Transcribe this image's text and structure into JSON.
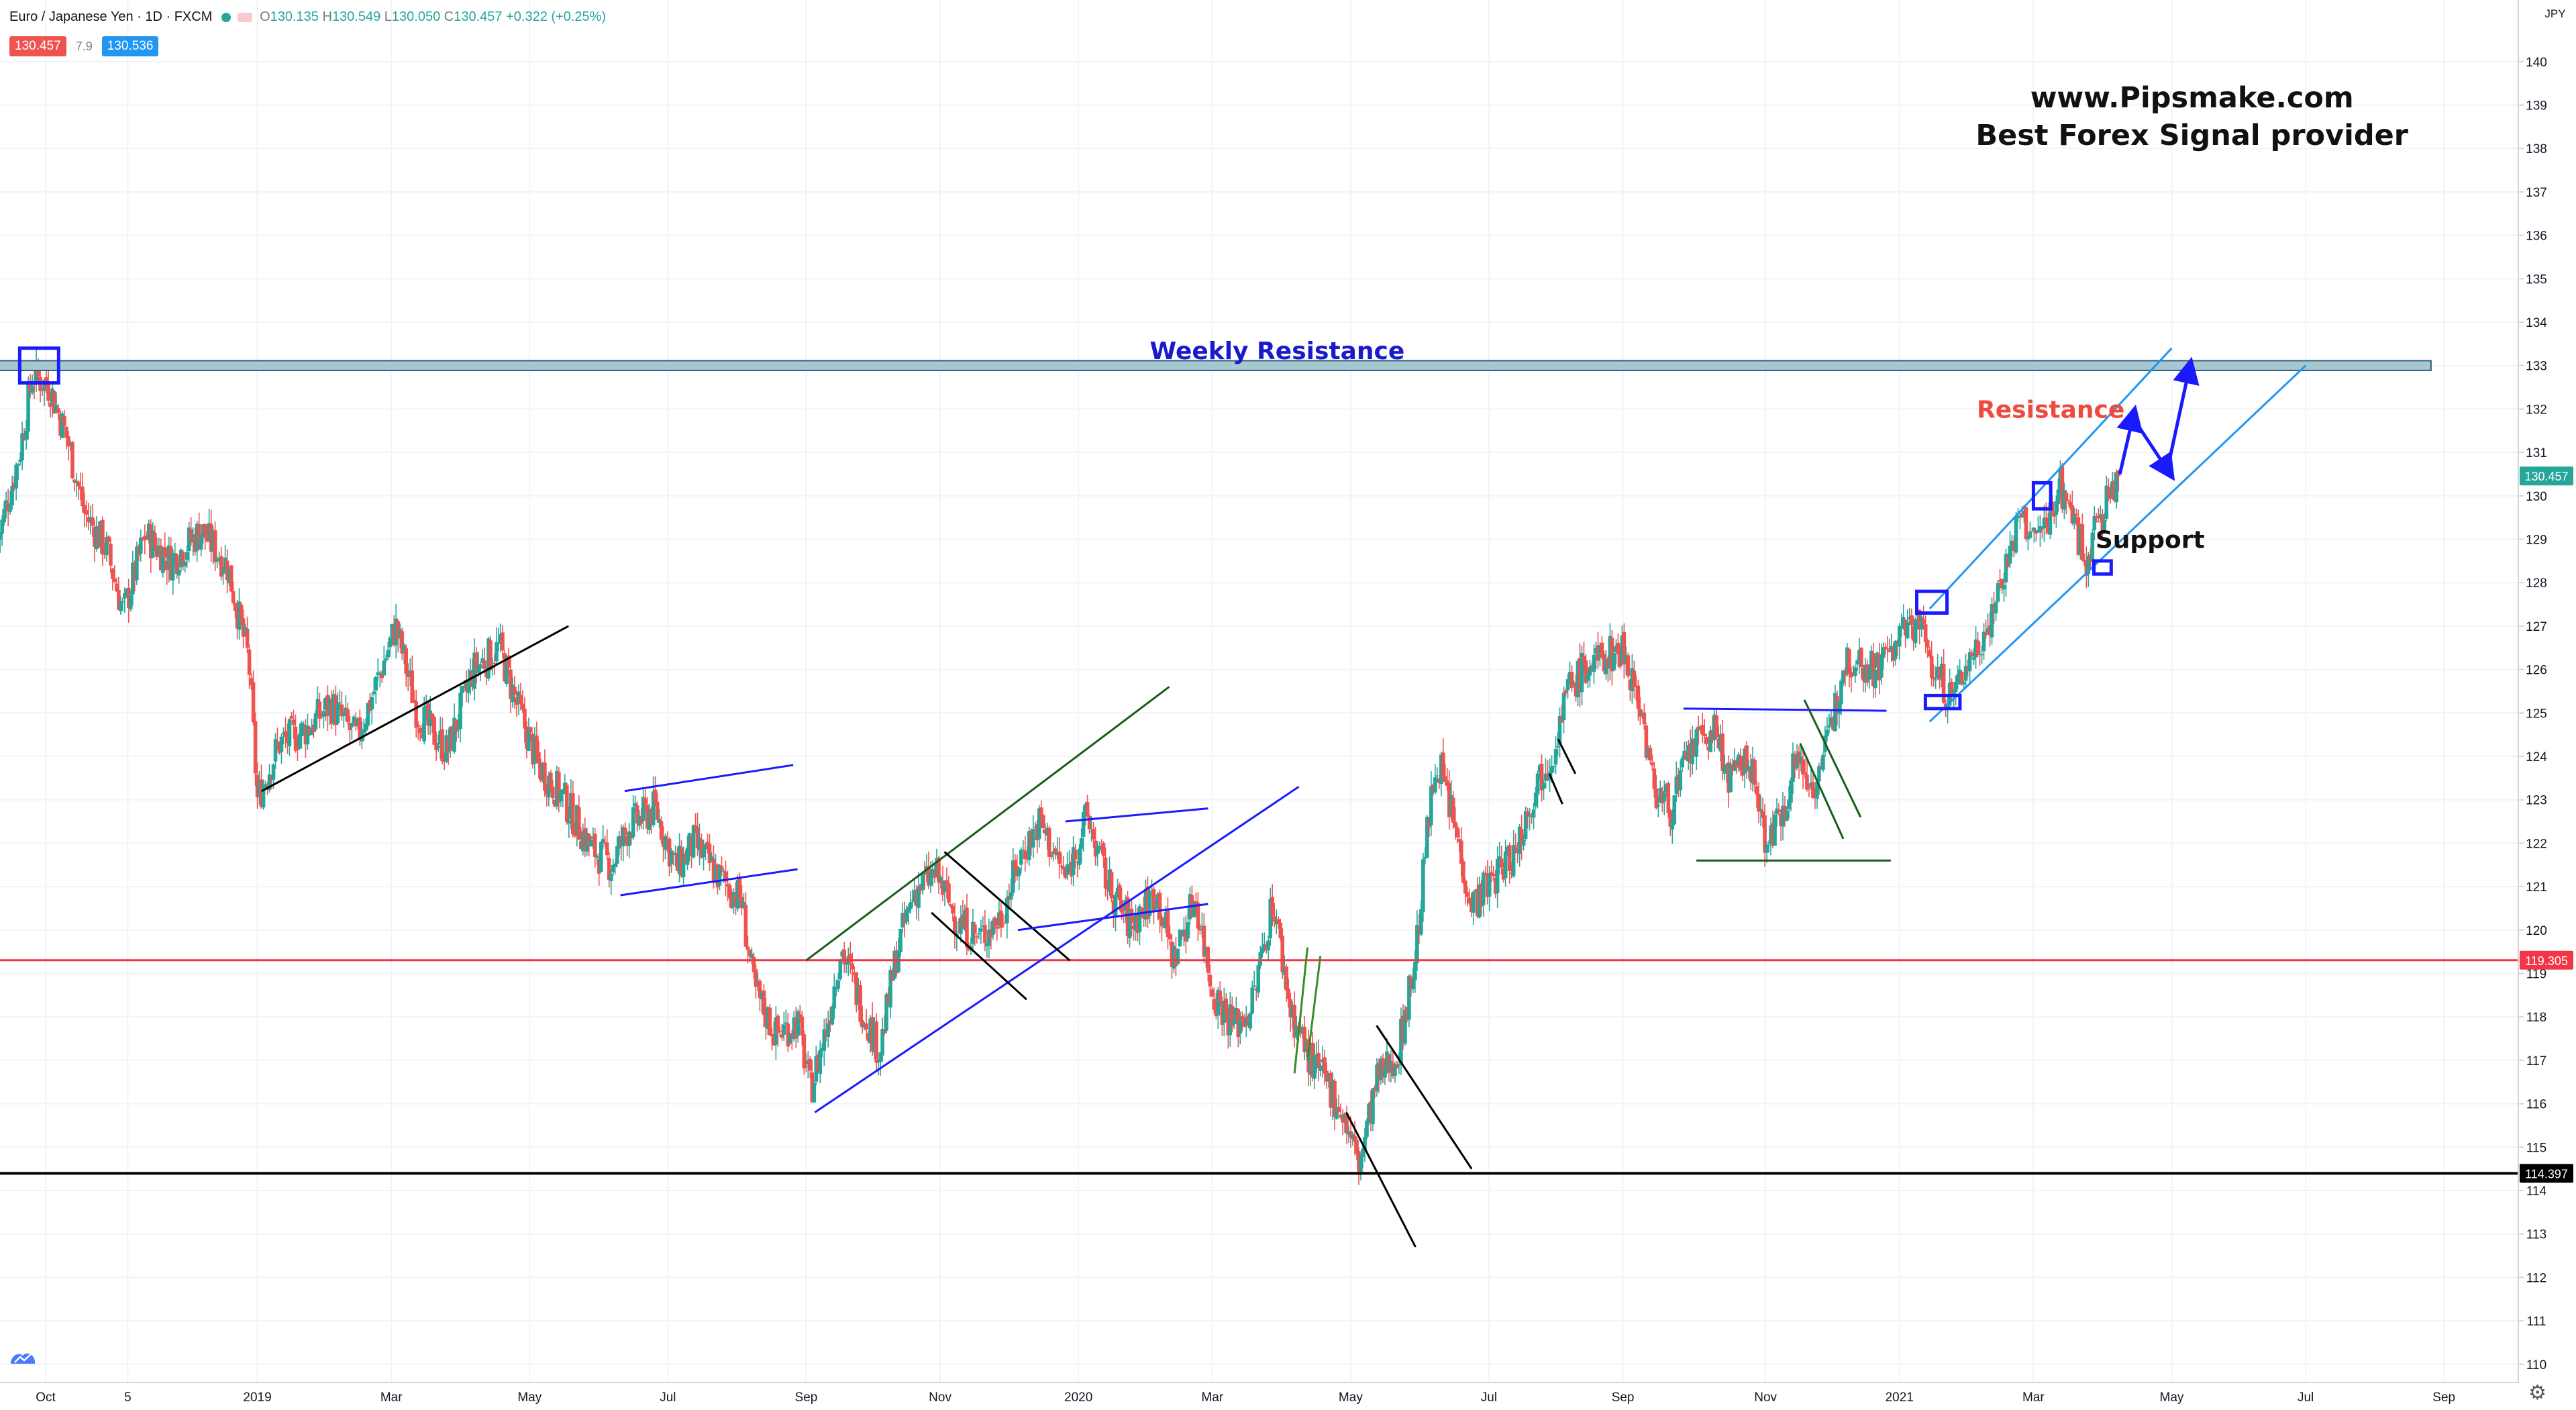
{
  "header": {
    "symbol": "Euro / Japanese Yen · 1D · FXCM",
    "open_label": "O",
    "open": "130.135",
    "high_label": "H",
    "high": "130.549",
    "low_label": "L",
    "low": "130.050",
    "close_label": "C",
    "close": "130.457",
    "change": "+0.322 (+0.25%)",
    "bid": "130.457",
    "spread": "7.9",
    "ask": "130.536"
  },
  "watermark": {
    "line1": "www.Pipsmake.com",
    "line2": "Best Forex Signal provider"
  },
  "chart_data": {
    "type": "candlestick",
    "currency": "JPY",
    "ylim": [
      109.4,
      140.4
    ],
    "y_ticks": [
      110,
      111,
      112,
      113,
      114,
      115,
      116,
      117,
      118,
      119,
      120,
      121,
      122,
      123,
      124,
      125,
      126,
      127,
      128,
      129,
      130,
      131,
      132,
      133,
      134,
      135,
      136,
      137,
      138,
      139,
      140
    ],
    "x_ticks": [
      {
        "label": "Oct",
        "x": 0.0
      },
      {
        "label": "5",
        "x": 1.9
      },
      {
        "label": "2019",
        "x": 4.9
      },
      {
        "label": "Mar",
        "x": 8.0
      },
      {
        "label": "May",
        "x": 11.2
      },
      {
        "label": "Jul",
        "x": 14.4
      },
      {
        "label": "Sep",
        "x": 17.6
      },
      {
        "label": "Nov",
        "x": 20.7
      },
      {
        "label": "2020",
        "x": 23.9
      },
      {
        "label": "Mar",
        "x": 27.0
      },
      {
        "label": "May",
        "x": 30.2
      },
      {
        "label": "Jul",
        "x": 33.4
      },
      {
        "label": "Sep",
        "x": 36.5
      },
      {
        "label": "Nov",
        "x": 39.8
      },
      {
        "label": "2021",
        "x": 42.9
      },
      {
        "label": "Mar",
        "x": 46.0
      },
      {
        "label": "May",
        "x": 49.2
      },
      {
        "label": "Jul",
        "x": 52.3
      },
      {
        "label": "Sep",
        "x": 55.5
      }
    ],
    "price_path": [
      [
        -1.1,
        129.0
      ],
      [
        -0.6,
        131.0
      ],
      [
        -0.3,
        132.8
      ],
      [
        0.1,
        132.5
      ],
      [
        0.5,
        131.3
      ],
      [
        0.9,
        129.6
      ],
      [
        1.4,
        128.8
      ],
      [
        1.8,
        127.3
      ],
      [
        2.3,
        129.1
      ],
      [
        2.9,
        128.5
      ],
      [
        3.6,
        129.2
      ],
      [
        4.2,
        128.4
      ],
      [
        4.7,
        126.2
      ],
      [
        4.9,
        123.0
      ],
      [
        5.4,
        124.3
      ],
      [
        6.0,
        124.6
      ],
      [
        6.6,
        125.2
      ],
      [
        7.2,
        124.4
      ],
      [
        7.7,
        125.8
      ],
      [
        8.1,
        127.0
      ],
      [
        8.6,
        125.0
      ],
      [
        9.3,
        124.1
      ],
      [
        9.9,
        126.0
      ],
      [
        10.5,
        126.5
      ],
      [
        10.9,
        125.2
      ],
      [
        11.4,
        123.8
      ],
      [
        12.0,
        123.0
      ],
      [
        12.6,
        121.9
      ],
      [
        13.1,
        121.5
      ],
      [
        13.5,
        122.4
      ],
      [
        14.1,
        122.8
      ],
      [
        14.6,
        121.4
      ],
      [
        15.0,
        122.0
      ],
      [
        15.6,
        121.2
      ],
      [
        16.1,
        120.7
      ],
      [
        16.4,
        118.6
      ],
      [
        16.9,
        117.6
      ],
      [
        17.4,
        117.9
      ],
      [
        17.7,
        116.3
      ],
      [
        18.1,
        117.9
      ],
      [
        18.4,
        119.6
      ],
      [
        18.9,
        118.2
      ],
      [
        19.3,
        117.2
      ],
      [
        19.7,
        119.5
      ],
      [
        20.1,
        120.9
      ],
      [
        20.6,
        121.3
      ],
      [
        21.1,
        120.2
      ],
      [
        21.6,
        119.8
      ],
      [
        22.1,
        120.3
      ],
      [
        22.6,
        121.8
      ],
      [
        23.0,
        122.5
      ],
      [
        23.6,
        121.2
      ],
      [
        24.1,
        122.6
      ],
      [
        24.6,
        121.0
      ],
      [
        25.1,
        120.1
      ],
      [
        25.7,
        120.9
      ],
      [
        26.1,
        119.3
      ],
      [
        26.6,
        120.8
      ],
      [
        27.0,
        118.6
      ],
      [
        27.5,
        117.8
      ],
      [
        27.9,
        118.2
      ],
      [
        28.4,
        120.7
      ],
      [
        28.8,
        118.2
      ],
      [
        29.3,
        116.9
      ],
      [
        29.7,
        116.4
      ],
      [
        30.0,
        115.8
      ],
      [
        30.4,
        114.6
      ],
      [
        30.8,
        116.5
      ],
      [
        31.3,
        117.2
      ],
      [
        31.7,
        119.4
      ],
      [
        32.0,
        122.5
      ],
      [
        32.2,
        124.0
      ],
      [
        32.6,
        122.4
      ],
      [
        33.0,
        120.6
      ],
      [
        33.5,
        121.2
      ],
      [
        34.0,
        121.8
      ],
      [
        34.5,
        123.4
      ],
      [
        34.9,
        124.2
      ],
      [
        35.2,
        125.5
      ],
      [
        35.6,
        126.0
      ],
      [
        36.1,
        126.3
      ],
      [
        36.5,
        126.5
      ],
      [
        36.9,
        125.2
      ],
      [
        37.2,
        123.3
      ],
      [
        37.6,
        122.8
      ],
      [
        38.1,
        124.2
      ],
      [
        38.6,
        124.6
      ],
      [
        39.0,
        123.4
      ],
      [
        39.4,
        124.0
      ],
      [
        39.8,
        122.1
      ],
      [
        40.1,
        122.4
      ],
      [
        40.5,
        124.0
      ],
      [
        40.9,
        123.3
      ],
      [
        41.3,
        124.5
      ],
      [
        41.6,
        126.2
      ],
      [
        41.9,
        126.3
      ],
      [
        42.3,
        126.0
      ],
      [
        42.9,
        126.7
      ],
      [
        43.3,
        127.2
      ],
      [
        43.7,
        126.0
      ],
      [
        44.1,
        125.3
      ],
      [
        44.5,
        126.2
      ],
      [
        44.9,
        126.9
      ],
      [
        45.3,
        128.2
      ],
      [
        45.7,
        129.5
      ],
      [
        46.0,
        129.0
      ],
      [
        46.3,
        129.3
      ],
      [
        46.6,
        130.3
      ],
      [
        46.9,
        129.6
      ],
      [
        47.2,
        128.5
      ],
      [
        47.5,
        129.4
      ],
      [
        47.8,
        130.1
      ],
      [
        48.0,
        130.46
      ]
    ],
    "resistance_zone": {
      "label": "Weekly Resistance",
      "low": 132.95,
      "high": 133.05,
      "x_start": -1.1,
      "x_end": 55.2
    },
    "horizontal_lines": [
      {
        "price": 119.305,
        "label": "119.305",
        "color": "#f23645"
      },
      {
        "price": 114.397,
        "label": "114.397",
        "color": "#000000"
      }
    ],
    "last_price": {
      "price": 130.457,
      "label": "130.457",
      "color": "#26a69a"
    },
    "trend_lines": [
      {
        "color": "#000000",
        "points": [
          [
            5.0,
            123.2
          ],
          [
            12.1,
            127.0
          ]
        ]
      },
      {
        "color": "#1a1aff",
        "points": [
          [
            13.4,
            123.2
          ],
          [
            17.3,
            123.8
          ]
        ]
      },
      {
        "color": "#1a1aff",
        "points": [
          [
            13.3,
            120.8
          ],
          [
            17.4,
            121.4
          ]
        ]
      },
      {
        "color": "#1a5c1a",
        "points": [
          [
            17.6,
            119.3
          ],
          [
            26.0,
            125.6
          ]
        ]
      },
      {
        "color": "#1a1aff",
        "points": [
          [
            17.8,
            115.8
          ],
          [
            29.0,
            123.3
          ]
        ]
      },
      {
        "color": "#000000",
        "points": [
          [
            20.8,
            121.8
          ],
          [
            23.7,
            119.3
          ]
        ]
      },
      {
        "color": "#000000",
        "points": [
          [
            20.5,
            120.4
          ],
          [
            22.7,
            118.4
          ]
        ]
      },
      {
        "color": "#1a1aff",
        "points": [
          [
            22.5,
            120.0
          ],
          [
            26.9,
            120.6
          ]
        ]
      },
      {
        "color": "#1a1aff",
        "points": [
          [
            23.6,
            122.5
          ],
          [
            26.9,
            122.8
          ]
        ]
      },
      {
        "color": "#3a8a2a",
        "points": [
          [
            29.2,
            119.6
          ],
          [
            28.9,
            116.7
          ]
        ]
      },
      {
        "color": "#3a8a2a",
        "points": [
          [
            29.5,
            119.4
          ],
          [
            29.2,
            117.0
          ]
        ]
      },
      {
        "color": "#000000",
        "points": [
          [
            30.8,
            117.8
          ],
          [
            33.0,
            114.5
          ]
        ]
      },
      {
        "color": "#000000",
        "points": [
          [
            30.1,
            115.8
          ],
          [
            31.7,
            112.7
          ]
        ]
      },
      {
        "color": "#000000",
        "points": [
          [
            35.0,
            124.4
          ],
          [
            35.4,
            123.6
          ]
        ]
      },
      {
        "color": "#000000",
        "points": [
          [
            34.8,
            123.6
          ],
          [
            35.1,
            122.9
          ]
        ]
      },
      {
        "color": "#1a1aff",
        "points": [
          [
            37.9,
            125.1
          ],
          [
            42.6,
            125.05
          ]
        ]
      },
      {
        "color": "#1a5c1a",
        "points": [
          [
            38.2,
            121.6
          ],
          [
            42.7,
            121.6
          ]
        ]
      },
      {
        "color": "#1a5c1a",
        "points": [
          [
            40.7,
            125.3
          ],
          [
            42.0,
            122.6
          ]
        ]
      },
      {
        "color": "#1a5c1a",
        "points": [
          [
            40.6,
            124.3
          ],
          [
            41.6,
            122.1
          ]
        ]
      },
      {
        "color": "#2196f3",
        "points": [
          [
            43.6,
            127.4
          ],
          [
            49.2,
            133.4
          ]
        ]
      },
      {
        "color": "#2196f3",
        "points": [
          [
            43.6,
            124.8
          ],
          [
            52.3,
            133.0
          ]
        ]
      }
    ],
    "boxes": [
      {
        "color": "#1a1aff",
        "x": [
          -0.6,
          0.3
        ],
        "y": [
          132.6,
          133.4
        ]
      },
      {
        "color": "#1a1aff",
        "x": [
          43.3,
          44.0
        ],
        "y": [
          127.3,
          127.8
        ]
      },
      {
        "color": "#1a1aff",
        "x": [
          43.5,
          44.3
        ],
        "y": [
          125.1,
          125.4
        ]
      },
      {
        "color": "#1a1aff",
        "x": [
          46.0,
          46.4
        ],
        "y": [
          129.7,
          130.3
        ]
      },
      {
        "color": "#1a1aff",
        "x": [
          47.4,
          47.8
        ],
        "y": [
          128.2,
          128.5
        ]
      }
    ],
    "projection_arrow": {
      "color": "#1a1aff",
      "points": [
        [
          48.0,
          130.5
        ],
        [
          48.3,
          131.8
        ],
        [
          49.1,
          130.6
        ],
        [
          49.6,
          132.9
        ]
      ]
    },
    "annotations": [
      {
        "text": "Weekly Resistance",
        "color": "#1a1acc",
        "x": 28.5,
        "y": 133.15
      },
      {
        "text": "Resistance",
        "color": "#ef4a3c",
        "x": 46.4,
        "y": 131.8
      },
      {
        "text": "Support",
        "color": "#111111",
        "x": 48.7,
        "y": 128.8
      }
    ]
  }
}
